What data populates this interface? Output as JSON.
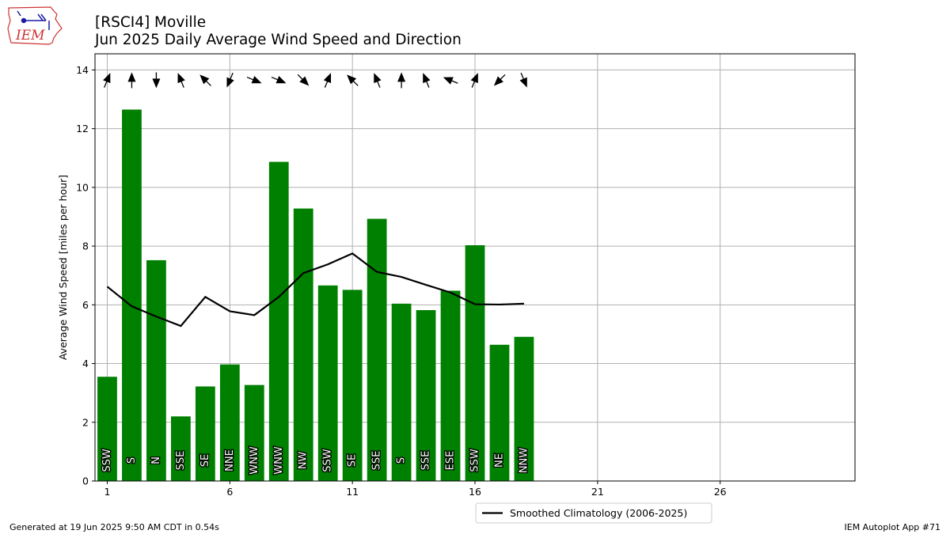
{
  "header": {
    "title_line1": "[RSCI4] Moville",
    "title_line2": "Jun 2025 Daily Average Wind Speed and Direction"
  },
  "logo": {
    "text": "IEM"
  },
  "footer": {
    "generated": "Generated at 19 Jun 2025 9:50 AM CDT in 0.54s",
    "app": "IEM Autoplot App #71"
  },
  "colors": {
    "bar": "#008000",
    "climatology": "#000000",
    "grid": "#b0b0b0",
    "logo_red": "#cc3333",
    "logo_blue": "#1a1aa6"
  },
  "chart_data": {
    "type": "bar",
    "x": [
      1,
      2,
      3,
      4,
      5,
      6,
      7,
      8,
      9,
      10,
      11,
      12,
      13,
      14,
      15,
      16,
      17,
      18
    ],
    "values": [
      3.55,
      12.65,
      7.52,
      2.2,
      3.22,
      3.97,
      3.27,
      10.87,
      9.28,
      6.66,
      6.51,
      8.93,
      6.04,
      5.82,
      6.48,
      8.03,
      4.64,
      4.91
    ],
    "directions": [
      "SSW",
      "S",
      "N",
      "SSE",
      "SE",
      "NNE",
      "WNW",
      "WNW",
      "NW",
      "SSW",
      "SE",
      "SSE",
      "S",
      "SSE",
      "ESE",
      "SSW",
      "NE",
      "NNW"
    ],
    "climatology": {
      "name": "Smoothed Climatology (2006-2025)",
      "x": [
        1,
        2,
        3,
        4,
        5,
        6,
        7,
        8,
        9,
        10,
        11,
        12,
        13,
        14,
        15,
        16,
        17,
        18
      ],
      "values": [
        6.62,
        5.95,
        5.6,
        5.28,
        6.27,
        5.78,
        5.65,
        6.27,
        7.08,
        7.38,
        7.75,
        7.12,
        6.95,
        6.68,
        6.42,
        6.02,
        6.01,
        6.04
      ]
    },
    "ylabel": "Average Wind Speed [miles per hour]",
    "xlabel": "",
    "xlim": [
      0.5,
      31.5
    ],
    "ylim": [
      0,
      14.55
    ],
    "xticks": [
      1,
      6,
      11,
      16,
      21,
      26
    ],
    "yticks": [
      0,
      2,
      4,
      6,
      8,
      10,
      12,
      14
    ],
    "grid": true,
    "legend_position": "bottom-center"
  }
}
